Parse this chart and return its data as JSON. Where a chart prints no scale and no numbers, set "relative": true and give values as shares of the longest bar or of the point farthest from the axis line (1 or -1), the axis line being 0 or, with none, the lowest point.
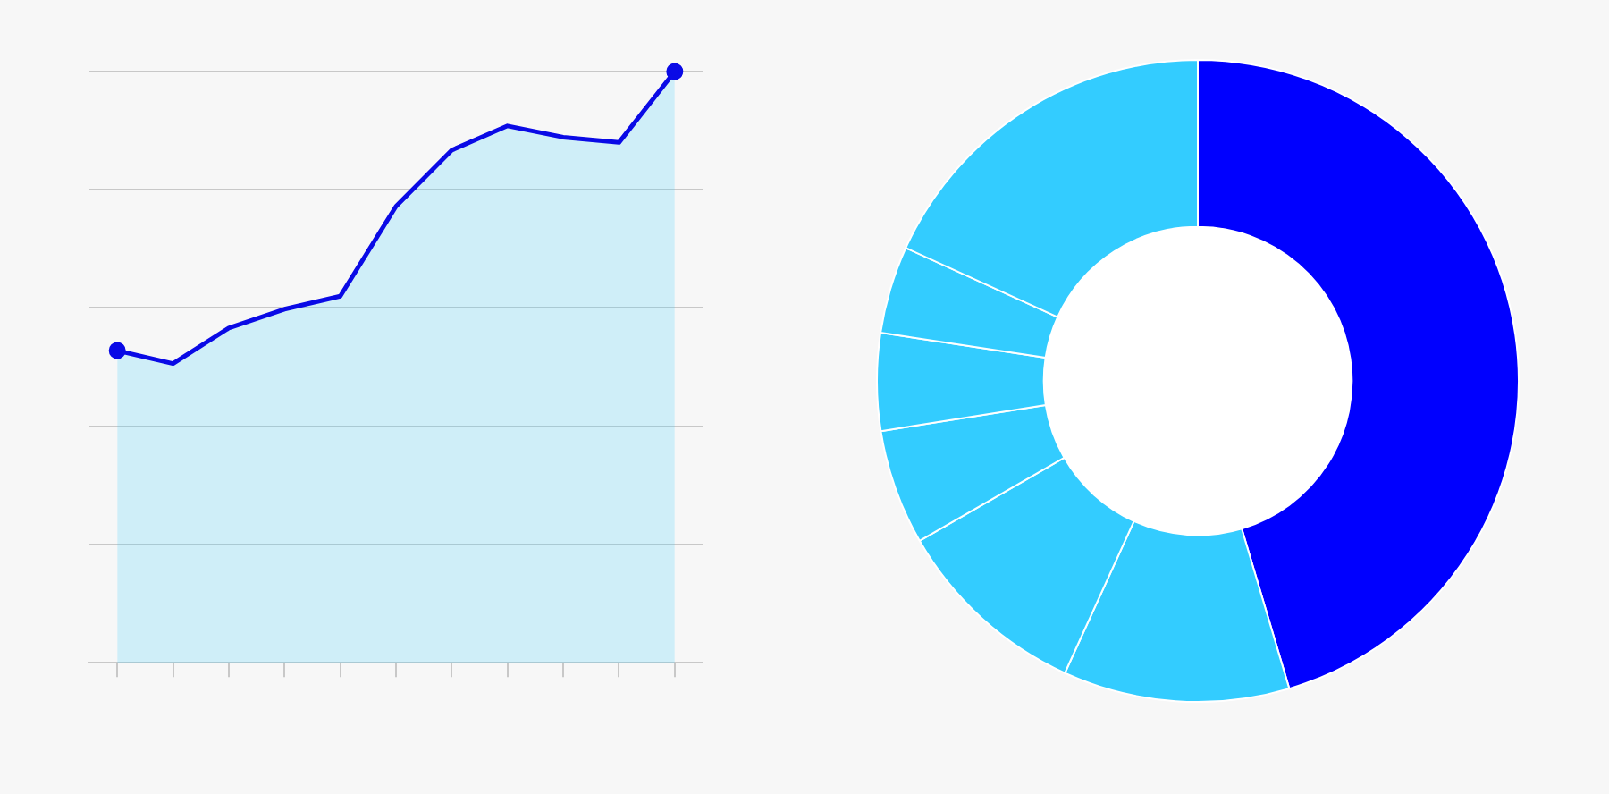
{
  "chart_data": [
    {
      "type": "area",
      "relative": true,
      "grid": "y",
      "categories": [
        null,
        null,
        null,
        null,
        null,
        null,
        null,
        null,
        null,
        null,
        null
      ],
      "series": [
        {
          "color": "#0a0ae6",
          "values": [
            0.528,
            0.506,
            0.566,
            0.598,
            0.62,
            0.772,
            0.867,
            0.908,
            0.889,
            0.88,
            1
          ]
        }
      ]
    },
    {
      "type": "donut",
      "categories": [
        null,
        null,
        null,
        null,
        null,
        null,
        null
      ],
      "values": [
        45.4,
        11.4,
        9.9,
        5.8,
        4.9,
        4.4,
        18.2
      ],
      "colors": [
        "#0000ff",
        "#33ccff",
        "#33ccff",
        "#33ccff",
        "#33ccff",
        "#33ccff",
        "#33ccff"
      ]
    }
  ]
}
